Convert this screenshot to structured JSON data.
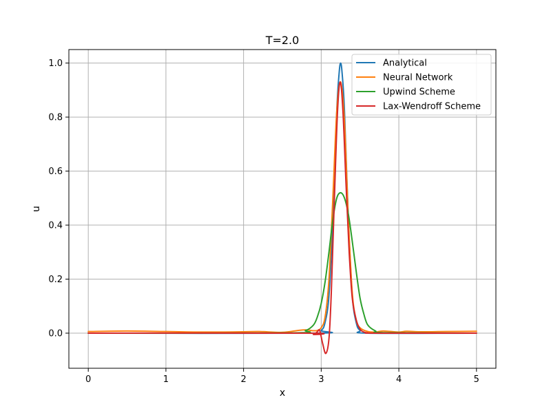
{
  "chart_data": {
    "type": "line",
    "title": "T=2.0",
    "xlabel": "x",
    "ylabel": "u",
    "xlim": [
      -0.25,
      5.25
    ],
    "ylim": [
      -0.13,
      1.05
    ],
    "xticks": [
      0,
      1,
      2,
      3,
      4,
      5
    ],
    "yticks": [
      0.0,
      0.2,
      0.4,
      0.6,
      0.8,
      1.0
    ],
    "xtick_labels": [
      "0",
      "1",
      "2",
      "3",
      "4",
      "5"
    ],
    "ytick_labels": [
      "0.0",
      "0.2",
      "0.4",
      "0.6",
      "0.8",
      "1.0"
    ],
    "grid": true,
    "legend_position": "top-right",
    "series": [
      {
        "name": "Analytical",
        "color": "#1f77b4",
        "x": [
          0,
          2.9,
          3.0,
          3.05,
          3.1,
          3.15,
          3.2,
          3.23,
          3.25,
          3.27,
          3.3,
          3.35,
          3.4,
          3.45,
          3.5,
          3.6,
          5
        ],
        "y": [
          0,
          0,
          0.01,
          0.04,
          0.14,
          0.42,
          0.82,
          0.96,
          1.0,
          0.96,
          0.82,
          0.42,
          0.14,
          0.04,
          0.01,
          0,
          0
        ]
      },
      {
        "name": "Neural Network",
        "color": "#ff7f0e",
        "x": [
          0,
          0.5,
          1.0,
          1.5,
          2.0,
          2.2,
          2.5,
          2.7,
          2.8,
          2.9,
          2.95,
          3.0,
          3.05,
          3.1,
          3.15,
          3.2,
          3.25,
          3.3,
          3.35,
          3.4,
          3.45,
          3.5,
          3.6,
          3.7,
          3.8,
          4.0,
          4.1,
          4.3,
          4.6,
          5.0
        ],
        "y": [
          0.006,
          0.008,
          0.006,
          0.004,
          0.005,
          0.006,
          0.003,
          0.01,
          0.012,
          0.009,
          0.01,
          0.02,
          0.06,
          0.2,
          0.5,
          0.82,
          0.93,
          0.78,
          0.42,
          0.15,
          0.05,
          0.02,
          0.006,
          0.004,
          0.008,
          0.004,
          0.007,
          0.005,
          0.006,
          0.007
        ]
      },
      {
        "name": "Upwind Scheme",
        "color": "#2ca02c",
        "x": [
          0,
          2.6,
          2.8,
          2.9,
          2.95,
          3.0,
          3.05,
          3.1,
          3.15,
          3.2,
          3.25,
          3.3,
          3.35,
          3.4,
          3.45,
          3.5,
          3.55,
          3.6,
          3.7,
          3.8,
          5.0
        ],
        "y": [
          0,
          0.001,
          0.01,
          0.03,
          0.06,
          0.11,
          0.19,
          0.3,
          0.42,
          0.5,
          0.52,
          0.5,
          0.44,
          0.34,
          0.23,
          0.13,
          0.07,
          0.03,
          0.008,
          0.002,
          0
        ]
      },
      {
        "name": "Lax-Wendroff Scheme",
        "color": "#d62728",
        "x": [
          0,
          2.8,
          2.9,
          2.95,
          2.98,
          3.02,
          3.06,
          3.1,
          3.13,
          3.17,
          3.21,
          3.245,
          3.28,
          3.32,
          3.36,
          3.4,
          3.45,
          3.5,
          3.55,
          3.6,
          3.7,
          5.0
        ],
        "y": [
          0,
          0,
          -0.005,
          0.005,
          0.01,
          -0.04,
          -0.075,
          -0.02,
          0.15,
          0.5,
          0.82,
          0.93,
          0.82,
          0.55,
          0.3,
          0.13,
          0.05,
          0.015,
          0.004,
          0.001,
          0,
          0
        ]
      }
    ]
  }
}
